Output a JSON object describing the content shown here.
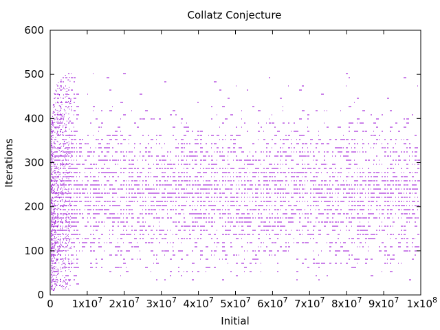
{
  "chart_data": {
    "type": "scatter",
    "title": "Collatz Conjecture",
    "xlabel": "Initial",
    "ylabel": "Iterations",
    "xlim": [
      0,
      100000000
    ],
    "ylim": [
      0,
      600
    ],
    "x_ticks": [
      {
        "value": 0,
        "label": "0"
      },
      {
        "value": 10000000,
        "label": "1x10",
        "exp": "7"
      },
      {
        "value": 20000000,
        "label": "2x10",
        "exp": "7"
      },
      {
        "value": 30000000,
        "label": "3x10",
        "exp": "7"
      },
      {
        "value": 40000000,
        "label": "4x10",
        "exp": "7"
      },
      {
        "value": 50000000,
        "label": "5x10",
        "exp": "7"
      },
      {
        "value": 60000000,
        "label": "6x10",
        "exp": "7"
      },
      {
        "value": 70000000,
        "label": "7x10",
        "exp": "7"
      },
      {
        "value": 80000000,
        "label": "8x10",
        "exp": "7"
      },
      {
        "value": 90000000,
        "label": "9x10",
        "exp": "7"
      },
      {
        "value": 100000000,
        "label": "1x10",
        "exp": "8"
      }
    ],
    "y_ticks": [
      {
        "value": 0,
        "label": "0"
      },
      {
        "value": 100,
        "label": "100"
      },
      {
        "value": 200,
        "label": "200"
      },
      {
        "value": 300,
        "label": "300"
      },
      {
        "value": 400,
        "label": "400"
      },
      {
        "value": 500,
        "label": "500"
      },
      {
        "value": 600,
        "label": "600"
      }
    ],
    "grid": false,
    "legend": "none",
    "point_color": "#9400d3",
    "envelope": [
      {
        "x": 0,
        "y_max": 360,
        "y_min": 0
      },
      {
        "x": 1000000,
        "y_max": 460,
        "y_min": 10
      },
      {
        "x": 2000000,
        "y_max": 485,
        "y_min": 15
      },
      {
        "x": 5000000,
        "y_max": 505,
        "y_min": 20
      },
      {
        "x": 10000000,
        "y_max": 510,
        "y_min": 25
      },
      {
        "x": 30000000,
        "y_max": 510,
        "y_min": 28
      },
      {
        "x": 100000000,
        "y_max": 505,
        "y_min": 32
      }
    ]
  }
}
